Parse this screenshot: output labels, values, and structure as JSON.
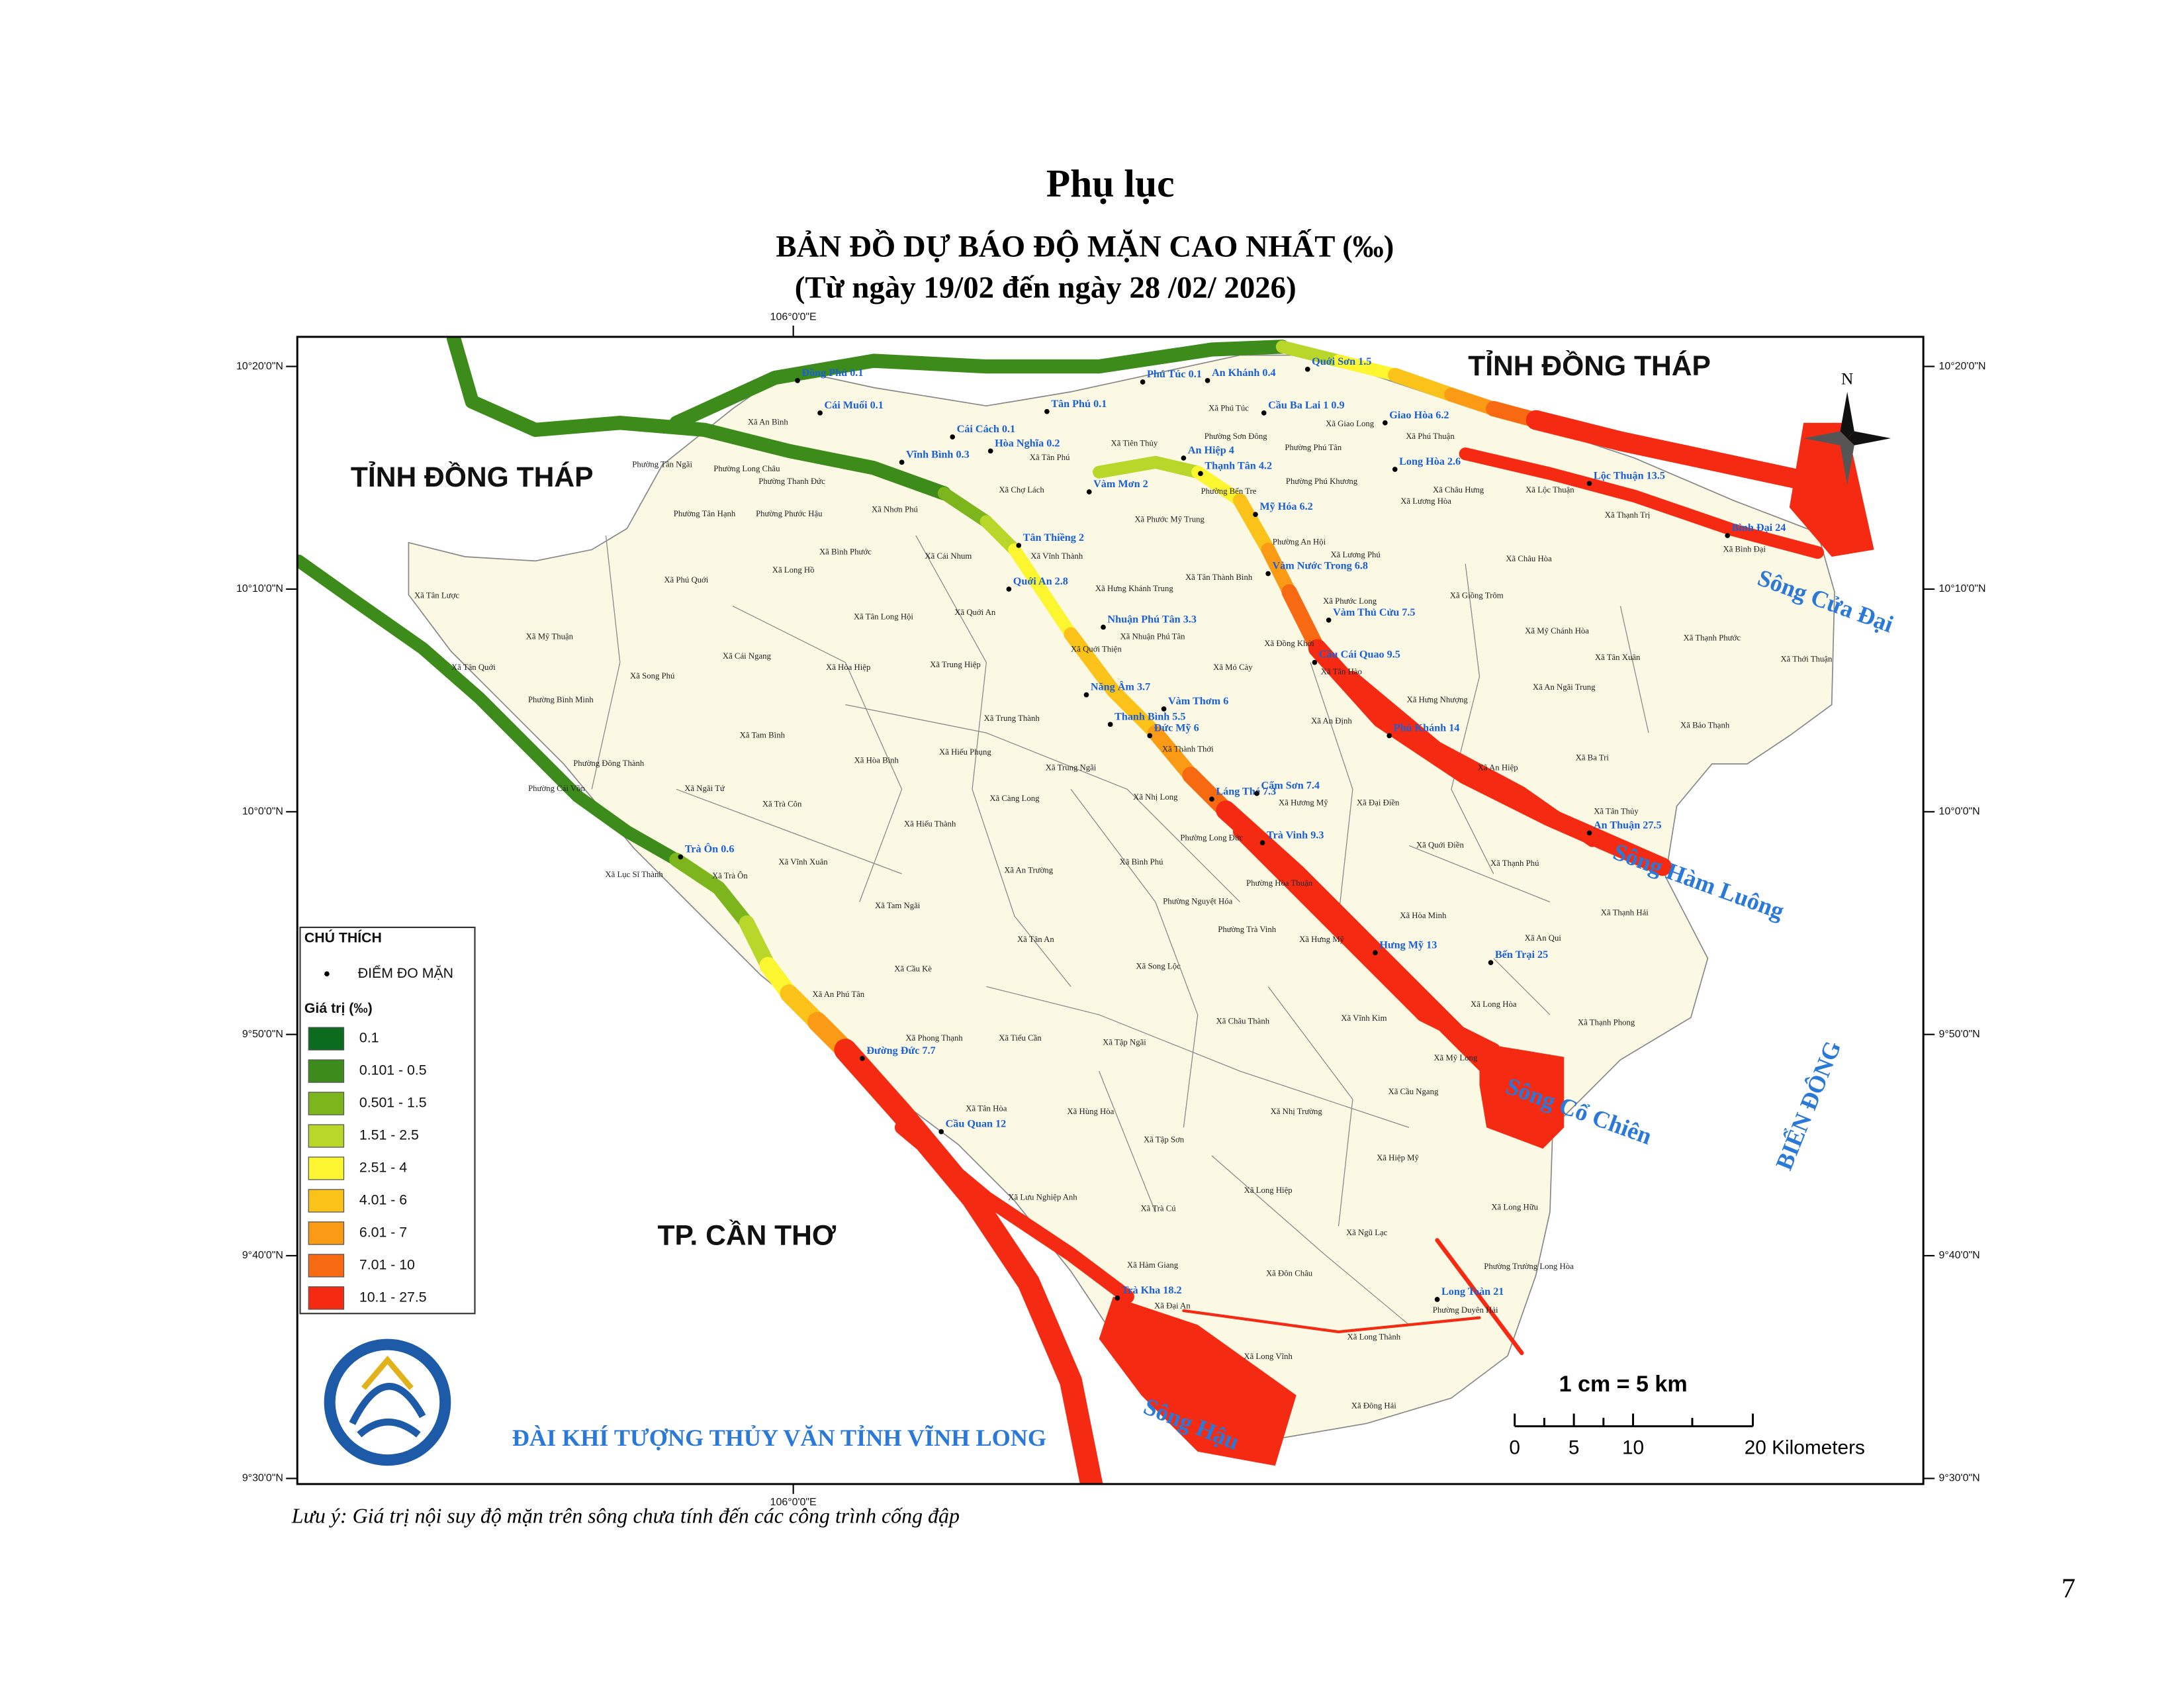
{
  "header": {
    "title": "Phụ lục",
    "map_title": "BẢN ĐỒ DỰ BÁO ĐỘ MẶN CAO NHẤT (‰)",
    "period": "(Từ ngày 19/02 đến ngày 28 /02/ 2026)"
  },
  "map": {
    "longitude_label": "106°0'0\"E",
    "latitude_labels": [
      "10°20'0\"N",
      "10°10'0\"N",
      "10°0'0\"N",
      "9°50'0\"N",
      "9°40'0\"N",
      "9°30'0\"N"
    ],
    "regions": [
      "TỈNH ĐỒNG THÁP",
      "TỈNH ĐỒNG THÁP",
      "TP. CẦN THƠ",
      "BIỂN ĐÔNG"
    ],
    "rivers": [
      "Sông Cửa Đại",
      "Sông Hàm Luông",
      "Sông Cổ Chiên",
      "Sông Hậu"
    ],
    "north": "N",
    "agency": "ĐÀI KHÍ TƯỢNG THỦY VĂN TỈNH VĨNH LONG",
    "stations": [
      "Đồng Phú 0.1",
      "Cái Muối 0.1",
      "Tân Phú 0.1",
      "Phú Túc 0.1",
      "An Khánh 0.4",
      "Quới Sơn 1.5",
      "Cầu Ba Lai 1 0.9",
      "Giao Hòa 6.2",
      "Cái Cách 0.1",
      "Hòa Nghĩa 0.2",
      "Vĩnh Bình 0.3",
      "An Hiệp 4",
      "Thạnh Tân 4.2",
      "Long Hòa 2.6",
      "Vàm Mơn 2",
      "Lộc Thuận 13.5",
      "Mỹ Hóa 6.2",
      "Bình Đại 24",
      "Tân Thiềng 2",
      "Vàm Nước Trong 6.8",
      "Quới An 2.8",
      "Vàm Thủ Cửu 7.5",
      "Nhuận Phú Tân 3.3",
      "Cầu Cái Quao 9.5",
      "Năng Âm 3.7",
      "Vàm Thơm 6",
      "Thanh Bình 5.5",
      "Đức Mỹ 6",
      "Phú Khánh 14",
      "Láng Thé 7.3",
      "Cẩm Sơn 7.4",
      "Trà Vinh 9.3",
      "An Thuận 27.5",
      "Trà Ôn 0.6",
      "Hưng Mỹ 13",
      "Bến Trại 25",
      "Đường Đức 7.7",
      "Cầu Quan 12",
      "Trà Kha 18.2",
      "Long Toàn 21"
    ],
    "communes": [
      "Xã An Bình",
      "Phường Tân Ngãi",
      "Phường Long Châu",
      "Phường Thanh Đức",
      "Phường Tân Hạnh",
      "Phường Phước Hậu",
      "Xã Tân Phú",
      "Xã Nhơn Phú",
      "Xã Chợ Lách",
      "Xã Tiên Thủy",
      "Xã Phú Túc",
      "Xã Giao Long",
      "Phường Sơn Đông",
      "Phường Phú Tân",
      "Phường Bến Tre",
      "Phường Phú Khương",
      "Xã Phú Thuận",
      "Xã Châu Hưng",
      "Xã Lương Hòa",
      "Xã Lộc Thuận",
      "Xã Thạnh Trị",
      "Xã Bình Đại",
      "Xã Phước Mỹ Trung",
      "Phường An Hội",
      "Xã Lương Phú",
      "Xã Bình Phước",
      "Xã Cái Nhum",
      "Xã Vĩnh Thành",
      "Xã Long Hồ",
      "Xã Phú Quới",
      "Xã Tân Lược",
      "Xã Hưng Khánh Trung",
      "Xã Tân Thành Bình",
      "Xã Châu Hòa",
      "Xã Giồng Trôm",
      "Xã Phước Long",
      "Xã Tân Long Hội",
      "Xã Quới An",
      "Xã Mỹ Thuận",
      "Xã Nhuận Phú Tân",
      "Xã Quới Thiện",
      "Xã Đồng Khởi",
      "Xã Mỹ Chánh Hòa",
      "Xã Thạnh Phước",
      "Xã Tân Xuân",
      "Xã Thới Thuận",
      "Xã Cái Ngang",
      "Xã Tân Quới",
      "Xã Song Phú",
      "Xã Hòa Hiệp",
      "Xã Trung Hiệp",
      "Xã Mỏ Cày",
      "Xã Tân Hào",
      "Phường Bình Minh",
      "Xã Hưng Nhượng",
      "Xã An Ngãi Trung",
      "Xã Tam Bình",
      "Xã Trung Thành",
      "Xã Thành Thới",
      "Xã An Định",
      "Xã Bảo Thạnh",
      "Phường Đông Thành",
      "Xã Hòa Bình",
      "Xã Hiếu Phụng",
      "Xã Trung Ngãi",
      "Xã An Hiệp",
      "Xã Ba Tri",
      "Xã Ngãi Tứ",
      "Phường Cái Vồn",
      "Xã Trà Côn",
      "Xã Hiếu Thành",
      "Xã Càng Long",
      "Xã Nhị Long",
      "Xã Hương Mỹ",
      "Xã Đại Điền",
      "Xã Tân Thủy",
      "Phường Long Đức",
      "Xã Quới Điền",
      "Xã Thạnh Phú",
      "Xã Vĩnh Xuân",
      "Xã Bình Phú",
      "Xã An Trường",
      "Xã Lục Sĩ Thành",
      "Xã Trà Ôn",
      "Phường Hòa Thuận",
      "Xã Tam Ngãi",
      "Phường Nguyệt Hóa",
      "Phường Trà Vinh",
      "Xã Hòa Minh",
      "Xã Thạnh Hải",
      "Xã Hưng Mỹ",
      "Xã An Qui",
      "Xã Tân An",
      "Xã Song Lộc",
      "Xã Cầu Kè",
      "Xã An Phú Tân",
      "Xã Long Hòa",
      "Xã Châu Thành",
      "Xã Vĩnh Kim",
      "Xã Thạnh Phong",
      "Xã Phong Thạnh",
      "Xã Tiểu Cần",
      "Xã Tập Ngãi",
      "Xã Mỹ Long",
      "Xã Cầu Ngang",
      "Xã Tân Hòa",
      "Xã Hùng Hòa",
      "Xã Nhị Trường",
      "Xã Tập Sơn",
      "Xã Hiệp Mỹ",
      "Xã Long Hiệp",
      "Xã Lưu Nghiệp Anh",
      "Xã Long Hữu",
      "Xã Trà Cú",
      "Xã Ngũ Lạc",
      "Xã Hàm Giang",
      "Xã Đôn Châu",
      "Phường Trường Long Hòa",
      "Phường Duyên Hải",
      "Xã Đại An",
      "Xã Long Thành",
      "Xã Long Vĩnh",
      "Xã Đông Hải"
    ]
  },
  "legend": {
    "title": "CHÚ THÍCH",
    "point_label": "ĐIỂM ĐO MẶN",
    "value_title": "Giá trị (‰)",
    "items": [
      {
        "label": "0.1",
        "color": "#0b6b1f"
      },
      {
        "label": "0.101 - 0.5",
        "color": "#3d8c1b"
      },
      {
        "label": "0.501 - 1.5",
        "color": "#7db51c"
      },
      {
        "label": "1.51 - 2.5",
        "color": "#b9d62b"
      },
      {
        "label": "2.51 - 4",
        "color": "#fbf630"
      },
      {
        "label": "4.01 - 6",
        "color": "#fbc21a"
      },
      {
        "label": "6.01 - 7",
        "color": "#fb9a14"
      },
      {
        "label": "7.01 - 10",
        "color": "#f86a12"
      },
      {
        "label": "10.1 - 27.5",
        "color": "#f52a12"
      }
    ]
  },
  "scale": {
    "ratio": "1 cm = 5 km",
    "labels": [
      "0",
      "5",
      "10",
      "20 Kilometers"
    ]
  },
  "note": "Lưu ý: Giá trị nội suy độ mặn trên sông chưa tính đến các công trình cống đập",
  "page_number": "7"
}
